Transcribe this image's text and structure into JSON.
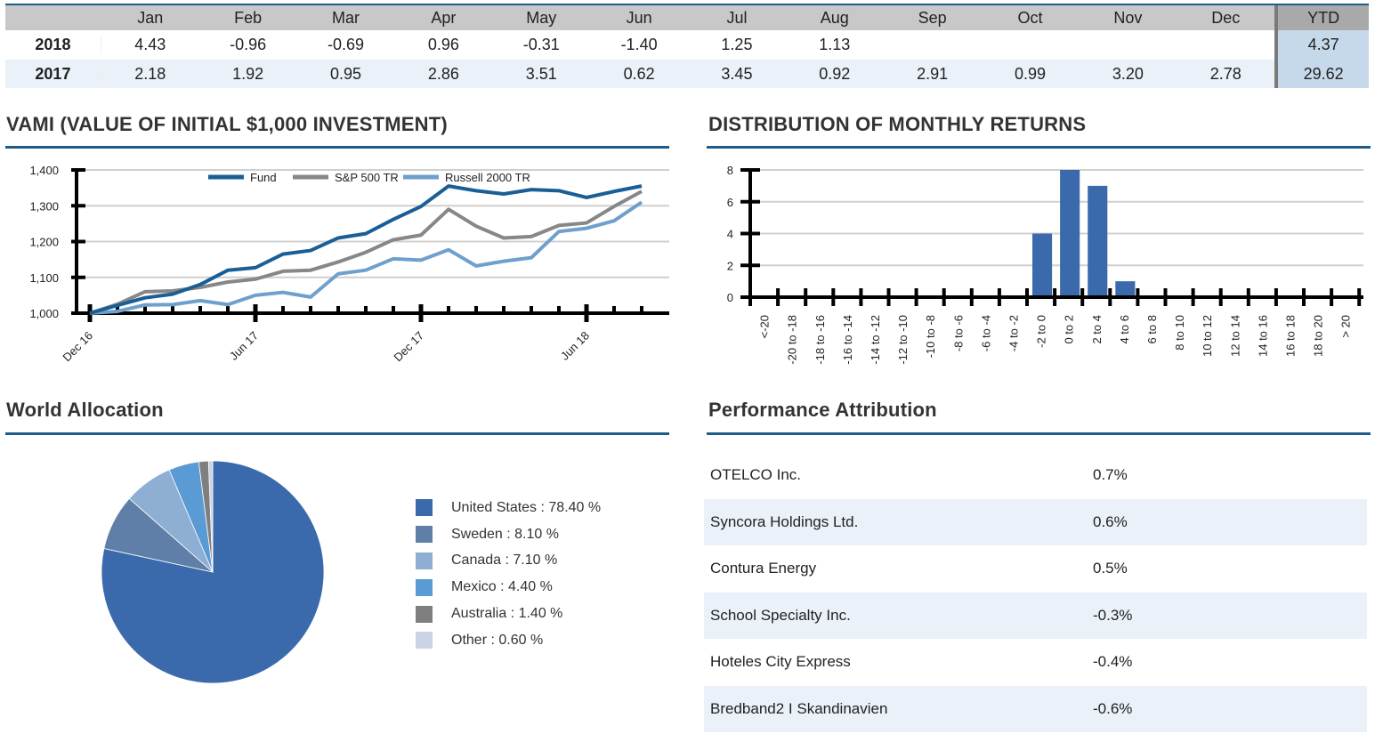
{
  "returns_table": {
    "months": [
      "Jan",
      "Feb",
      "Mar",
      "Apr",
      "May",
      "Jun",
      "Jul",
      "Aug",
      "Sep",
      "Oct",
      "Nov",
      "Dec"
    ],
    "ytd_label": "YTD",
    "rows": [
      {
        "year": "2018",
        "values": [
          "4.43",
          "-0.96",
          "-0.69",
          "0.96",
          "-0.31",
          "-1.40",
          "1.25",
          "1.13",
          "",
          "",
          "",
          ""
        ],
        "ytd": "4.37"
      },
      {
        "year": "2017",
        "values": [
          "2.18",
          "1.92",
          "0.95",
          "2.86",
          "3.51",
          "0.62",
          "3.45",
          "0.92",
          "2.91",
          "0.99",
          "3.20",
          "2.78"
        ],
        "ytd": "29.62"
      }
    ]
  },
  "sections": {
    "vami_title": "VAMI (VALUE OF INITIAL $1,000 INVESTMENT)",
    "dist_title": "DISTRIBUTION OF MONTHLY RETURNS",
    "world_title": "World Allocation",
    "perf_title": "Performance Attribution"
  },
  "colors": {
    "fund": "#1a5e96",
    "sp500": "#878787",
    "russell": "#6fa0cc",
    "bar": "#3a6aac",
    "accent_rule": "#1f5c8a"
  },
  "chart_data": [
    {
      "type": "line",
      "title": "VAMI (VALUE OF INITIAL $1,000 INVESTMENT)",
      "xlabel": "",
      "ylabel": "",
      "x": [
        "Dec 16",
        "Jan 17",
        "Feb 17",
        "Mar 17",
        "Apr 17",
        "May 17",
        "Jun 17",
        "Jul 17",
        "Aug 17",
        "Sep 17",
        "Oct 17",
        "Nov 17",
        "Dec 17",
        "Jan 18",
        "Feb 18",
        "Mar 18",
        "Apr 18",
        "May 18",
        "Jun 18",
        "Jul 18",
        "Aug 18"
      ],
      "x_tick_labels": [
        "Dec 16",
        "Jun 17",
        "Dec 17",
        "Jun 18"
      ],
      "y_ticks": [
        "1,000",
        "1,100",
        "1,200",
        "1,300",
        "1,400"
      ],
      "ylim": [
        1000,
        1400
      ],
      "grid": true,
      "legend_position": "top",
      "series": [
        {
          "name": "Fund",
          "values": [
            1000,
            1022,
            1043,
            1053,
            1080,
            1120,
            1127,
            1165,
            1175,
            1210,
            1222,
            1262,
            1298,
            1355,
            1342,
            1333,
            1345,
            1342,
            1323,
            1340,
            1355
          ]
        },
        {
          "name": "S&P 500 TR",
          "values": [
            1000,
            1025,
            1060,
            1062,
            1072,
            1087,
            1095,
            1117,
            1120,
            1143,
            1170,
            1205,
            1218,
            1290,
            1243,
            1210,
            1214,
            1245,
            1252,
            1298,
            1340
          ]
        },
        {
          "name": "Russell 2000 TR",
          "values": [
            1000,
            1005,
            1023,
            1024,
            1035,
            1024,
            1050,
            1058,
            1045,
            1110,
            1120,
            1152,
            1148,
            1177,
            1132,
            1145,
            1155,
            1228,
            1237,
            1258,
            1310
          ]
        }
      ]
    },
    {
      "type": "bar",
      "title": "DISTRIBUTION OF MONTHLY RETURNS",
      "xlabel": "",
      "ylabel": "",
      "categories": [
        "<-20",
        "-20 to -18",
        "-18 to -16",
        "-16 to -14",
        "-14 to -12",
        "-12 to -10",
        "-10 to -8",
        "-8 to -6",
        "-6 to -4",
        "-4 to -2",
        "-2 to 0",
        "0 to 2",
        "2 to 4",
        "4 to 6",
        "6 to 8",
        "8 to 10",
        "10 to 12",
        "12 to 14",
        "14 to 16",
        "16 to 18",
        "18 to 20",
        "> 20"
      ],
      "values": [
        0,
        0,
        0,
        0,
        0,
        0,
        0,
        0,
        0,
        0,
        4,
        8,
        7,
        1,
        0,
        0,
        0,
        0,
        0,
        0,
        0,
        0
      ],
      "y_ticks": [
        "0",
        "2",
        "4",
        "6",
        "8"
      ],
      "ylim": [
        0,
        8
      ],
      "grid": true
    },
    {
      "type": "pie",
      "title": "World Allocation",
      "legend_position": "right",
      "slices": [
        {
          "label": "United States",
          "value": 78.4,
          "legend": "United States : 78.40 %",
          "color": "#3a6aac"
        },
        {
          "label": "Sweden",
          "value": 8.1,
          "legend": "Sweden : 8.10 %",
          "color": "#5f7fa8"
        },
        {
          "label": "Canada",
          "value": 7.1,
          "legend": "Canada : 7.10 %",
          "color": "#8eaed3"
        },
        {
          "label": "Mexico",
          "value": 4.4,
          "legend": "Mexico : 4.40 %",
          "color": "#5b9bd5"
        },
        {
          "label": "Australia",
          "value": 1.4,
          "legend": "Australia : 1.40 %",
          "color": "#7f7f7f"
        },
        {
          "label": "Other",
          "value": 0.6,
          "legend": "Other : 0.60 %",
          "color": "#c9d3e3"
        }
      ]
    },
    {
      "type": "table",
      "title": "Performance Attribution",
      "rows": [
        {
          "name": "OTELCO Inc.",
          "value": "0.7%"
        },
        {
          "name": "Syncora Holdings Ltd.",
          "value": "0.6%"
        },
        {
          "name": "Contura Energy",
          "value": "0.5%"
        },
        {
          "name": "School Specialty Inc.",
          "value": "-0.3%"
        },
        {
          "name": "Hoteles City Express",
          "value": "-0.4%"
        },
        {
          "name": "Bredband2 I Skandinavien",
          "value": "-0.6%"
        }
      ]
    }
  ]
}
